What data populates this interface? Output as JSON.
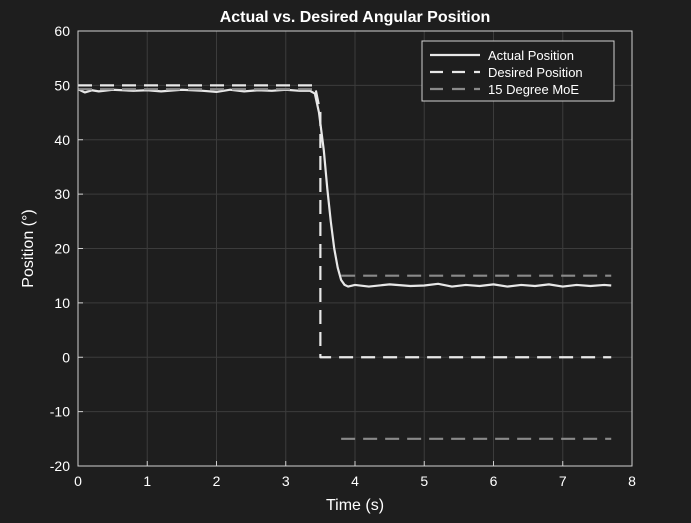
{
  "chart_data": {
    "type": "line",
    "title": "Actual vs. Desired Angular Position",
    "xlabel": "Time (s)",
    "ylabel": "Position (°)",
    "xlim": [
      0,
      8
    ],
    "ylim": [
      -20,
      60
    ],
    "xticks": [
      0,
      1,
      2,
      3,
      4,
      5,
      6,
      7,
      8
    ],
    "yticks": [
      -20,
      -10,
      0,
      10,
      20,
      30,
      40,
      50,
      60
    ],
    "grid": true,
    "legend_position": "top-right",
    "series": [
      {
        "name": "Actual Position",
        "style": "solid",
        "color": "#e8e8e8",
        "x": [
          0,
          0.1,
          0.2,
          0.3,
          0.5,
          0.8,
          1.0,
          1.2,
          1.5,
          1.8,
          2.0,
          2.2,
          2.4,
          2.6,
          2.8,
          3.0,
          3.2,
          3.35,
          3.42,
          3.48,
          3.55,
          3.6,
          3.65,
          3.7,
          3.75,
          3.8,
          3.85,
          3.9,
          4.0,
          4.2,
          4.5,
          4.8,
          5.0,
          5.2,
          5.4,
          5.6,
          5.8,
          6.0,
          6.2,
          6.4,
          6.6,
          6.8,
          7.0,
          7.2,
          7.4,
          7.6,
          7.7
        ],
        "y": [
          49.3,
          48.7,
          49.1,
          48.9,
          49.2,
          49.0,
          49.1,
          48.9,
          49.2,
          49.0,
          48.8,
          49.2,
          48.9,
          49.1,
          49.0,
          49.2,
          49.0,
          49.0,
          48.5,
          45,
          38,
          31,
          25,
          20,
          16.5,
          14.2,
          13.3,
          13.0,
          13.3,
          13.0,
          13.4,
          13.1,
          13.2,
          13.5,
          13.0,
          13.3,
          13.1,
          13.4,
          13.0,
          13.3,
          13.1,
          13.4,
          13.0,
          13.3,
          13.1,
          13.3,
          13.2
        ]
      },
      {
        "name": "Desired Position",
        "style": "dashed",
        "color": "#e8e8e8",
        "x": [
          0,
          3.42,
          3.5,
          3.5,
          7.7
        ],
        "y": [
          50,
          50,
          45,
          0,
          0
        ]
      },
      {
        "name": "15 Degree MoE",
        "style": "dashed",
        "color": "#8a8a8a",
        "segments": [
          {
            "x": [
              0,
              3.42
            ],
            "y": [
              49.3,
              49.3
            ]
          },
          {
            "x": [
              3.8,
              7.7
            ],
            "y": [
              15,
              15
            ]
          },
          {
            "x": [
              3.8,
              7.7
            ],
            "y": [
              -15,
              -15
            ]
          }
        ]
      }
    ]
  }
}
